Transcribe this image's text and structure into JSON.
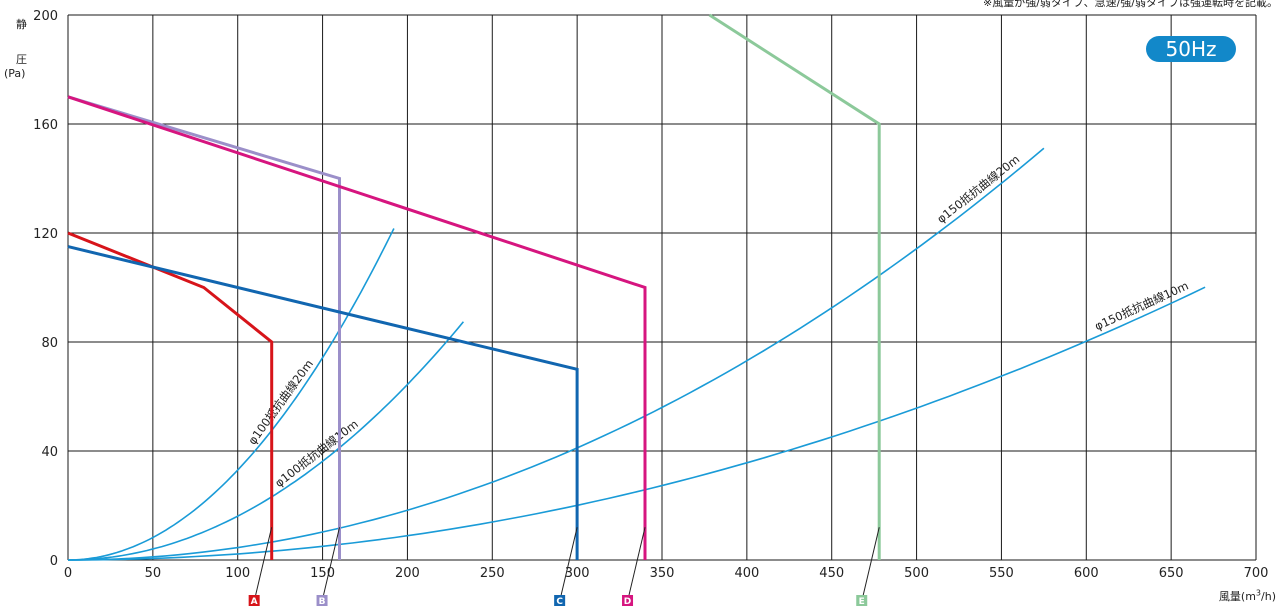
{
  "note": "※風量が強/弱タイプ、急速/強/弱タイプは強運転時を記載。",
  "badge": "50Hz",
  "ylabel": {
    "line1": "静",
    "line2": "圧",
    "unit": "(Pa)"
  },
  "xlabel": {
    "prefix": "風量(m",
    "exp": "3",
    "suffix": "/h)"
  },
  "colors": {
    "grid": "#1a1a1a",
    "resistance": "#1a9bd7",
    "A": "#d7141a",
    "B": "#9b8fc9",
    "C": "#1166b0",
    "D": "#d6157f",
    "E": "#8cc99a"
  },
  "chart_data": {
    "type": "line",
    "title": "",
    "xlabel": "風量(m3/h)",
    "ylabel": "静圧(Pa)",
    "xlim": [
      0,
      700
    ],
    "ylim": [
      0,
      200
    ],
    "xticks": [
      0,
      50,
      100,
      150,
      200,
      250,
      300,
      350,
      400,
      450,
      500,
      550,
      600,
      650,
      700
    ],
    "yticks": [
      0,
      40,
      80,
      120,
      160,
      200
    ],
    "xgrid": [
      0,
      50,
      100,
      150,
      200,
      250,
      300,
      350,
      400,
      450,
      500,
      550,
      600,
      650,
      700
    ],
    "ygrid": [
      0,
      40,
      80,
      120,
      160,
      200
    ],
    "grid": true,
    "series": [
      {
        "name": "A",
        "color_key": "A",
        "x": [
          0,
          80,
          120,
          120
        ],
        "y": [
          120,
          100,
          80,
          0
        ]
      },
      {
        "name": "B",
        "color_key": "B",
        "x": [
          0,
          160,
          160
        ],
        "y": [
          170,
          140,
          0
        ]
      },
      {
        "name": "C",
        "color_key": "C",
        "x": [
          0,
          300,
          300
        ],
        "y": [
          115,
          70,
          0
        ]
      },
      {
        "name": "D",
        "color_key": "D",
        "x": [
          0,
          340,
          340
        ],
        "y": [
          170,
          100,
          0
        ]
      },
      {
        "name": "E",
        "color_key": "E",
        "x": [
          378,
          478,
          478
        ],
        "y": [
          200,
          160,
          0
        ]
      }
    ],
    "resistance_curves": [
      {
        "name": "φ100抵抗曲線20m",
        "k": 0.0033,
        "xmax": 192,
        "label_at": 130
      },
      {
        "name": "φ100抵抗曲線10m",
        "k": 0.00161,
        "xmax": 233,
        "label_at": 150
      },
      {
        "name": "φ150抵抗曲線20m",
        "k": 0.000457,
        "xmax": 575,
        "label_at": 540
      },
      {
        "name": "φ150抵抗曲線10m",
        "k": 0.000223,
        "xmax": 670,
        "label_at": 635
      }
    ],
    "markers": [
      {
        "label": "A",
        "color_key": "A",
        "x": 120
      },
      {
        "label": "B",
        "color_key": "B",
        "x": 160
      },
      {
        "label": "C",
        "color_key": "C",
        "x": 300
      },
      {
        "label": "D",
        "color_key": "D",
        "x": 340
      },
      {
        "label": "E",
        "color_key": "E",
        "x": 478
      }
    ]
  }
}
